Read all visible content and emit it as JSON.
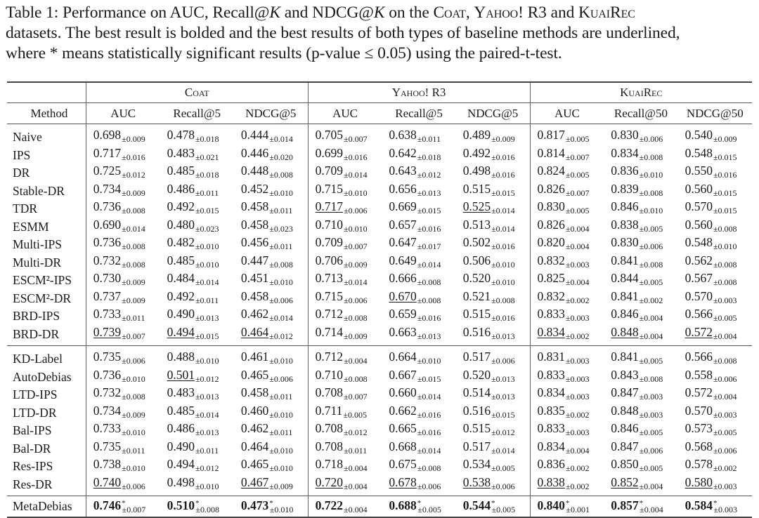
{
  "caption": {
    "label": "Table 1:",
    "line1_pre": "Performance on AUC, Recall@",
    "k1": "K",
    "line1_mid": " and NDCG@",
    "k2": "K",
    "line1_on": " on the ",
    "ds1": "Coat",
    "sep1": ", ",
    "ds2": "Yahoo! R3",
    "and": " and ",
    "ds3": "KuaiRec",
    "line2": "datasets. The best result is bolded and the best results of both types of baseline methods are underlined,",
    "line3": "where * means statistically significant results (p-value ≤ 0.05) using the paired-t-test."
  },
  "table": {
    "method_header": "Method",
    "datasets": [
      {
        "name": "Coat",
        "metrics": [
          "AUC",
          "Recall@5",
          "NDCG@5"
        ]
      },
      {
        "name": "Yahoo! R3",
        "metrics": [
          "AUC",
          "Recall@5",
          "NDCG@5"
        ]
      },
      {
        "name": "KuaiRec",
        "metrics": [
          "AUC",
          "Recall@50",
          "NDCG@50"
        ]
      }
    ]
  },
  "chart_data": {
    "type": "table",
    "title": "Table 1: Performance on AUC, Recall@K and NDCG@K on the Coat, Yahoo! R3 and KuaiRec datasets.",
    "columns": [
      "Method",
      "Coat AUC",
      "Coat Recall@5",
      "Coat NDCG@5",
      "Yahoo! R3 AUC",
      "Yahoo! R3 Recall@5",
      "Yahoo! R3 NDCG@5",
      "KuaiRec AUC",
      "KuaiRec Recall@50",
      "KuaiRec NDCG@50"
    ],
    "groups": [
      {
        "rows": [
          {
            "method": "Naive",
            "cells": [
              [
                "0.698",
                "±0.009"
              ],
              [
                "0.478",
                "±0.018"
              ],
              [
                "0.444",
                "±0.014"
              ],
              [
                "0.705",
                "±0.007"
              ],
              [
                "0.638",
                "±0.011"
              ],
              [
                "0.489",
                "±0.009"
              ],
              [
                "0.817",
                "±0.005"
              ],
              [
                "0.830",
                "±0.006"
              ],
              [
                "0.540",
                "±0.009"
              ]
            ]
          },
          {
            "method": "IPS",
            "cells": [
              [
                "0.717",
                "±0.016"
              ],
              [
                "0.483",
                "±0.021"
              ],
              [
                "0.446",
                "±0.020"
              ],
              [
                "0.699",
                "±0.016"
              ],
              [
                "0.642",
                "±0.018"
              ],
              [
                "0.492",
                "±0.016"
              ],
              [
                "0.814",
                "±0.007"
              ],
              [
                "0.834",
                "±0.008"
              ],
              [
                "0.548",
                "±0.015"
              ]
            ]
          },
          {
            "method": "DR",
            "cells": [
              [
                "0.725",
                "±0.012"
              ],
              [
                "0.485",
                "±0.018"
              ],
              [
                "0.448",
                "±0.008"
              ],
              [
                "0.709",
                "±0.014"
              ],
              [
                "0.643",
                "±0.012"
              ],
              [
                "0.498",
                "±0.016"
              ],
              [
                "0.824",
                "±0.005"
              ],
              [
                "0.836",
                "±0.010"
              ],
              [
                "0.550",
                "±0.016"
              ]
            ]
          },
          {
            "method": "Stable-DR",
            "cells": [
              [
                "0.734",
                "±0.009"
              ],
              [
                "0.486",
                "±0.011"
              ],
              [
                "0.452",
                "±0.010"
              ],
              [
                "0.715",
                "±0.010"
              ],
              [
                "0.656",
                "±0.013"
              ],
              [
                "0.515",
                "±0.015"
              ],
              [
                "0.826",
                "±0.007"
              ],
              [
                "0.839",
                "±0.008"
              ],
              [
                "0.560",
                "±0.015"
              ]
            ]
          },
          {
            "method": "TDR",
            "cells": [
              [
                "0.736",
                "±0.008"
              ],
              [
                "0.492",
                "±0.015"
              ],
              [
                "0.458",
                "±0.011"
              ],
              [
                "0.717",
                "±0.006",
                "u"
              ],
              [
                "0.669",
                "±0.015"
              ],
              [
                "0.525",
                "±0.014",
                "u"
              ],
              [
                "0.830",
                "±0.005"
              ],
              [
                "0.846",
                "±0.010"
              ],
              [
                "0.570",
                "±0.015"
              ]
            ]
          },
          {
            "method": "ESMM",
            "cells": [
              [
                "0.690",
                "±0.014"
              ],
              [
                "0.480",
                "±0.023"
              ],
              [
                "0.458",
                "±0.023"
              ],
              [
                "0.710",
                "±0.010"
              ],
              [
                "0.657",
                "±0.016"
              ],
              [
                "0.513",
                "±0.014"
              ],
              [
                "0.826",
                "±0.004"
              ],
              [
                "0.838",
                "±0.005"
              ],
              [
                "0.560",
                "±0.008"
              ]
            ]
          },
          {
            "method": "Multi-IPS",
            "cells": [
              [
                "0.736",
                "±0.008"
              ],
              [
                "0.482",
                "±0.010"
              ],
              [
                "0.456",
                "±0.011"
              ],
              [
                "0.709",
                "±0.007"
              ],
              [
                "0.647",
                "±0.017"
              ],
              [
                "0.502",
                "±0.016"
              ],
              [
                "0.820",
                "±0.004"
              ],
              [
                "0.830",
                "±0.006"
              ],
              [
                "0.548",
                "±0.010"
              ]
            ]
          },
          {
            "method": "Multi-DR",
            "cells": [
              [
                "0.732",
                "±0.008"
              ],
              [
                "0.485",
                "±0.010"
              ],
              [
                "0.447",
                "±0.008"
              ],
              [
                "0.706",
                "±0.009"
              ],
              [
                "0.649",
                "±0.014"
              ],
              [
                "0.506",
                "±0.010"
              ],
              [
                "0.832",
                "±0.003"
              ],
              [
                "0.841",
                "±0.008"
              ],
              [
                "0.562",
                "±0.008"
              ]
            ]
          },
          {
            "method": "ESCM²-IPS",
            "cells": [
              [
                "0.730",
                "±0.009"
              ],
              [
                "0.484",
                "±0.014"
              ],
              [
                "0.451",
                "±0.010"
              ],
              [
                "0.713",
                "±0.014"
              ],
              [
                "0.666",
                "±0.008"
              ],
              [
                "0.520",
                "±0.010"
              ],
              [
                "0.825",
                "±0.004"
              ],
              [
                "0.844",
                "±0.005"
              ],
              [
                "0.567",
                "±0.008"
              ]
            ]
          },
          {
            "method": "ESCM²-DR",
            "cells": [
              [
                "0.737",
                "±0.009"
              ],
              [
                "0.492",
                "±0.011"
              ],
              [
                "0.458",
                "±0.006"
              ],
              [
                "0.715",
                "±0.006"
              ],
              [
                "0.670",
                "±0.008",
                "u"
              ],
              [
                "0.521",
                "±0.008"
              ],
              [
                "0.832",
                "±0.002"
              ],
              [
                "0.841",
                "±0.002"
              ],
              [
                "0.570",
                "±0.003"
              ]
            ]
          },
          {
            "method": "BRD-IPS",
            "cells": [
              [
                "0.733",
                "±0.011"
              ],
              [
                "0.490",
                "±0.013"
              ],
              [
                "0.462",
                "±0.014"
              ],
              [
                "0.712",
                "±0.008"
              ],
              [
                "0.659",
                "±0.016"
              ],
              [
                "0.515",
                "±0.016"
              ],
              [
                "0.833",
                "±0.003"
              ],
              [
                "0.846",
                "±0.004"
              ],
              [
                "0.566",
                "±0.005"
              ]
            ]
          },
          {
            "method": "BRD-DR",
            "cells": [
              [
                "0.739",
                "±0.007",
                "u"
              ],
              [
                "0.494",
                "±0.015",
                "u"
              ],
              [
                "0.464",
                "±0.012",
                "u"
              ],
              [
                "0.714",
                "±0.009"
              ],
              [
                "0.663",
                "±0.013"
              ],
              [
                "0.516",
                "±0.013"
              ],
              [
                "0.834",
                "±0.002",
                "u"
              ],
              [
                "0.848",
                "±0.004",
                "u"
              ],
              [
                "0.572",
                "±0.004",
                "u"
              ]
            ]
          }
        ]
      },
      {
        "rows": [
          {
            "method": "KD-Label",
            "cells": [
              [
                "0.735",
                "±0.006"
              ],
              [
                "0.488",
                "±0.010"
              ],
              [
                "0.461",
                "±0.010"
              ],
              [
                "0.712",
                "±0.004"
              ],
              [
                "0.664",
                "±0.010"
              ],
              [
                "0.517",
                "±0.006"
              ],
              [
                "0.831",
                "±0.003"
              ],
              [
                "0.841",
                "±0.005"
              ],
              [
                "0.566",
                "±0.008"
              ]
            ]
          },
          {
            "method": "AutoDebias",
            "cells": [
              [
                "0.736",
                "±0.010"
              ],
              [
                "0.501",
                "±0.012",
                "u"
              ],
              [
                "0.465",
                "±0.006"
              ],
              [
                "0.710",
                "±0.008"
              ],
              [
                "0.667",
                "±0.015"
              ],
              [
                "0.520",
                "±0.013"
              ],
              [
                "0.833",
                "±0.003"
              ],
              [
                "0.843",
                "±0.008"
              ],
              [
                "0.558",
                "±0.006"
              ]
            ]
          },
          {
            "method": "LTD-IPS",
            "cells": [
              [
                "0.732",
                "±0.008"
              ],
              [
                "0.483",
                "±0.013"
              ],
              [
                "0.458",
                "±0.011"
              ],
              [
                "0.708",
                "±0.007"
              ],
              [
                "0.660",
                "±0.014"
              ],
              [
                "0.514",
                "±0.013"
              ],
              [
                "0.834",
                "±0.003"
              ],
              [
                "0.847",
                "±0.003"
              ],
              [
                "0.572",
                "±0.004"
              ]
            ]
          },
          {
            "method": "LTD-DR",
            "cells": [
              [
                "0.734",
                "±0.009"
              ],
              [
                "0.485",
                "±0.014"
              ],
              [
                "0.460",
                "±0.010"
              ],
              [
                "0.711",
                "±0.005"
              ],
              [
                "0.662",
                "±0.016"
              ],
              [
                "0.516",
                "±0.015"
              ],
              [
                "0.835",
                "±0.002"
              ],
              [
                "0.848",
                "±0.003"
              ],
              [
                "0.570",
                "±0.003"
              ]
            ]
          },
          {
            "method": "Bal-IPS",
            "cells": [
              [
                "0.733",
                "±0.010"
              ],
              [
                "0.486",
                "±0.013"
              ],
              [
                "0.462",
                "±0.011"
              ],
              [
                "0.708",
                "±0.012"
              ],
              [
                "0.665",
                "±0.016"
              ],
              [
                "0.515",
                "±0.012"
              ],
              [
                "0.833",
                "±0.003"
              ],
              [
                "0.846",
                "±0.005"
              ],
              [
                "0.573",
                "±0.005"
              ]
            ]
          },
          {
            "method": "Bal-DR",
            "cells": [
              [
                "0.735",
                "±0.011"
              ],
              [
                "0.490",
                "±0.011"
              ],
              [
                "0.464",
                "±0.010"
              ],
              [
                "0.708",
                "±0.011"
              ],
              [
                "0.668",
                "±0.014"
              ],
              [
                "0.517",
                "±0.014"
              ],
              [
                "0.834",
                "±0.004"
              ],
              [
                "0.847",
                "±0.006"
              ],
              [
                "0.568",
                "±0.006"
              ]
            ]
          },
          {
            "method": "Res-IPS",
            "cells": [
              [
                "0.738",
                "±0.010"
              ],
              [
                "0.494",
                "±0.012"
              ],
              [
                "0.465",
                "±0.010"
              ],
              [
                "0.718",
                "±0.004"
              ],
              [
                "0.675",
                "±0.008"
              ],
              [
                "0.534",
                "±0.005"
              ],
              [
                "0.836",
                "±0.002"
              ],
              [
                "0.850",
                "±0.005"
              ],
              [
                "0.578",
                "±0.002"
              ]
            ]
          },
          {
            "method": "Res-DR",
            "cells": [
              [
                "0.740",
                "±0.006",
                "u"
              ],
              [
                "0.498",
                "±0.010"
              ],
              [
                "0.467",
                "±0.009",
                "u"
              ],
              [
                "0.720",
                "±0.004",
                "u"
              ],
              [
                "0.678",
                "±0.006",
                "u"
              ],
              [
                "0.538",
                "±0.006",
                "u"
              ],
              [
                "0.838",
                "±0.002",
                "u"
              ],
              [
                "0.852",
                "±0.004",
                "u"
              ],
              [
                "0.580",
                "±0.003",
                "u"
              ]
            ]
          }
        ]
      },
      {
        "rows": [
          {
            "method": "MetaDebias",
            "cells": [
              [
                "0.746",
                "±0.007",
                "b*"
              ],
              [
                "0.510",
                "±0.008",
                "b*"
              ],
              [
                "0.473",
                "±0.010",
                "b*"
              ],
              [
                "0.722",
                "±0.004",
                "b"
              ],
              [
                "0.688",
                "±0.005",
                "b*"
              ],
              [
                "0.544",
                "±0.005",
                "b*"
              ],
              [
                "0.840",
                "±0.001",
                "b*"
              ],
              [
                "0.857",
                "±0.004",
                "b*"
              ],
              [
                "0.584",
                "±0.003",
                "b*"
              ]
            ]
          }
        ]
      }
    ]
  }
}
